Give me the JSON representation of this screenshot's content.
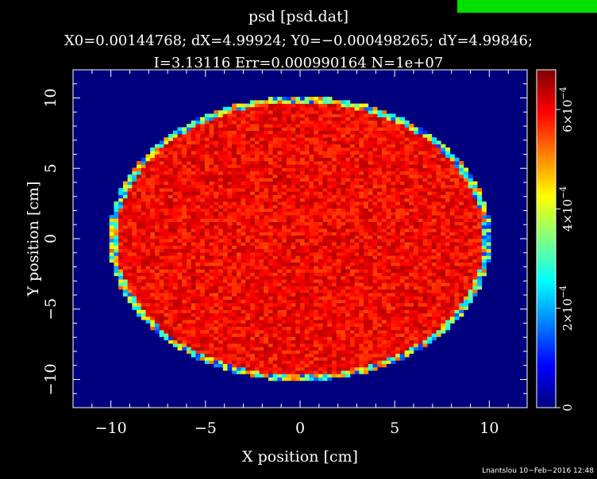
{
  "chart_data": {
    "type": "heatmap",
    "title": "psd [psd.dat]",
    "subtitle_line1": "X0=0.00144768; dX=4.99924; Y0=−0.000498265; dY=4.99846;",
    "subtitle_line2": "I=3.13116 Err=0.000990164 N=1e+07",
    "xlabel": "X position [cm]",
    "ylabel": "Y position [cm]",
    "xlim": [
      -12,
      12
    ],
    "ylim": [
      -12,
      12
    ],
    "x_ticks": [
      -10,
      -5,
      0,
      5,
      10
    ],
    "y_ticks": [
      -10,
      -5,
      0,
      5,
      10
    ],
    "x_tick_labels": [
      "−10",
      "−5",
      "0",
      "5",
      "10"
    ],
    "y_tick_labels": [
      "−10",
      "−5",
      "0",
      "5",
      "10"
    ],
    "disk_radius": 10,
    "interior_value": 0.00061,
    "edge_peak_value": 0.00045,
    "background_value": 0,
    "colorbar": {
      "range": [
        0,
        0.00068
      ],
      "ticks": [
        0,
        0.0002,
        0.0004,
        0.0006
      ],
      "tick_labels": [
        {
          "mant": "0",
          "exp": ""
        },
        {
          "mant": "2×10",
          "exp": "−4"
        },
        {
          "mant": "4×10",
          "exp": "−4"
        },
        {
          "mant": "6×10",
          "exp": "−4"
        }
      ]
    },
    "colormap": "jet",
    "background_color": "#000000",
    "plot_background_color": "#00007f"
  },
  "footer": {
    "signature": "Lnantslou 10−Feb−2016 12:48"
  },
  "corner_badge": {
    "color": "#00e000"
  }
}
